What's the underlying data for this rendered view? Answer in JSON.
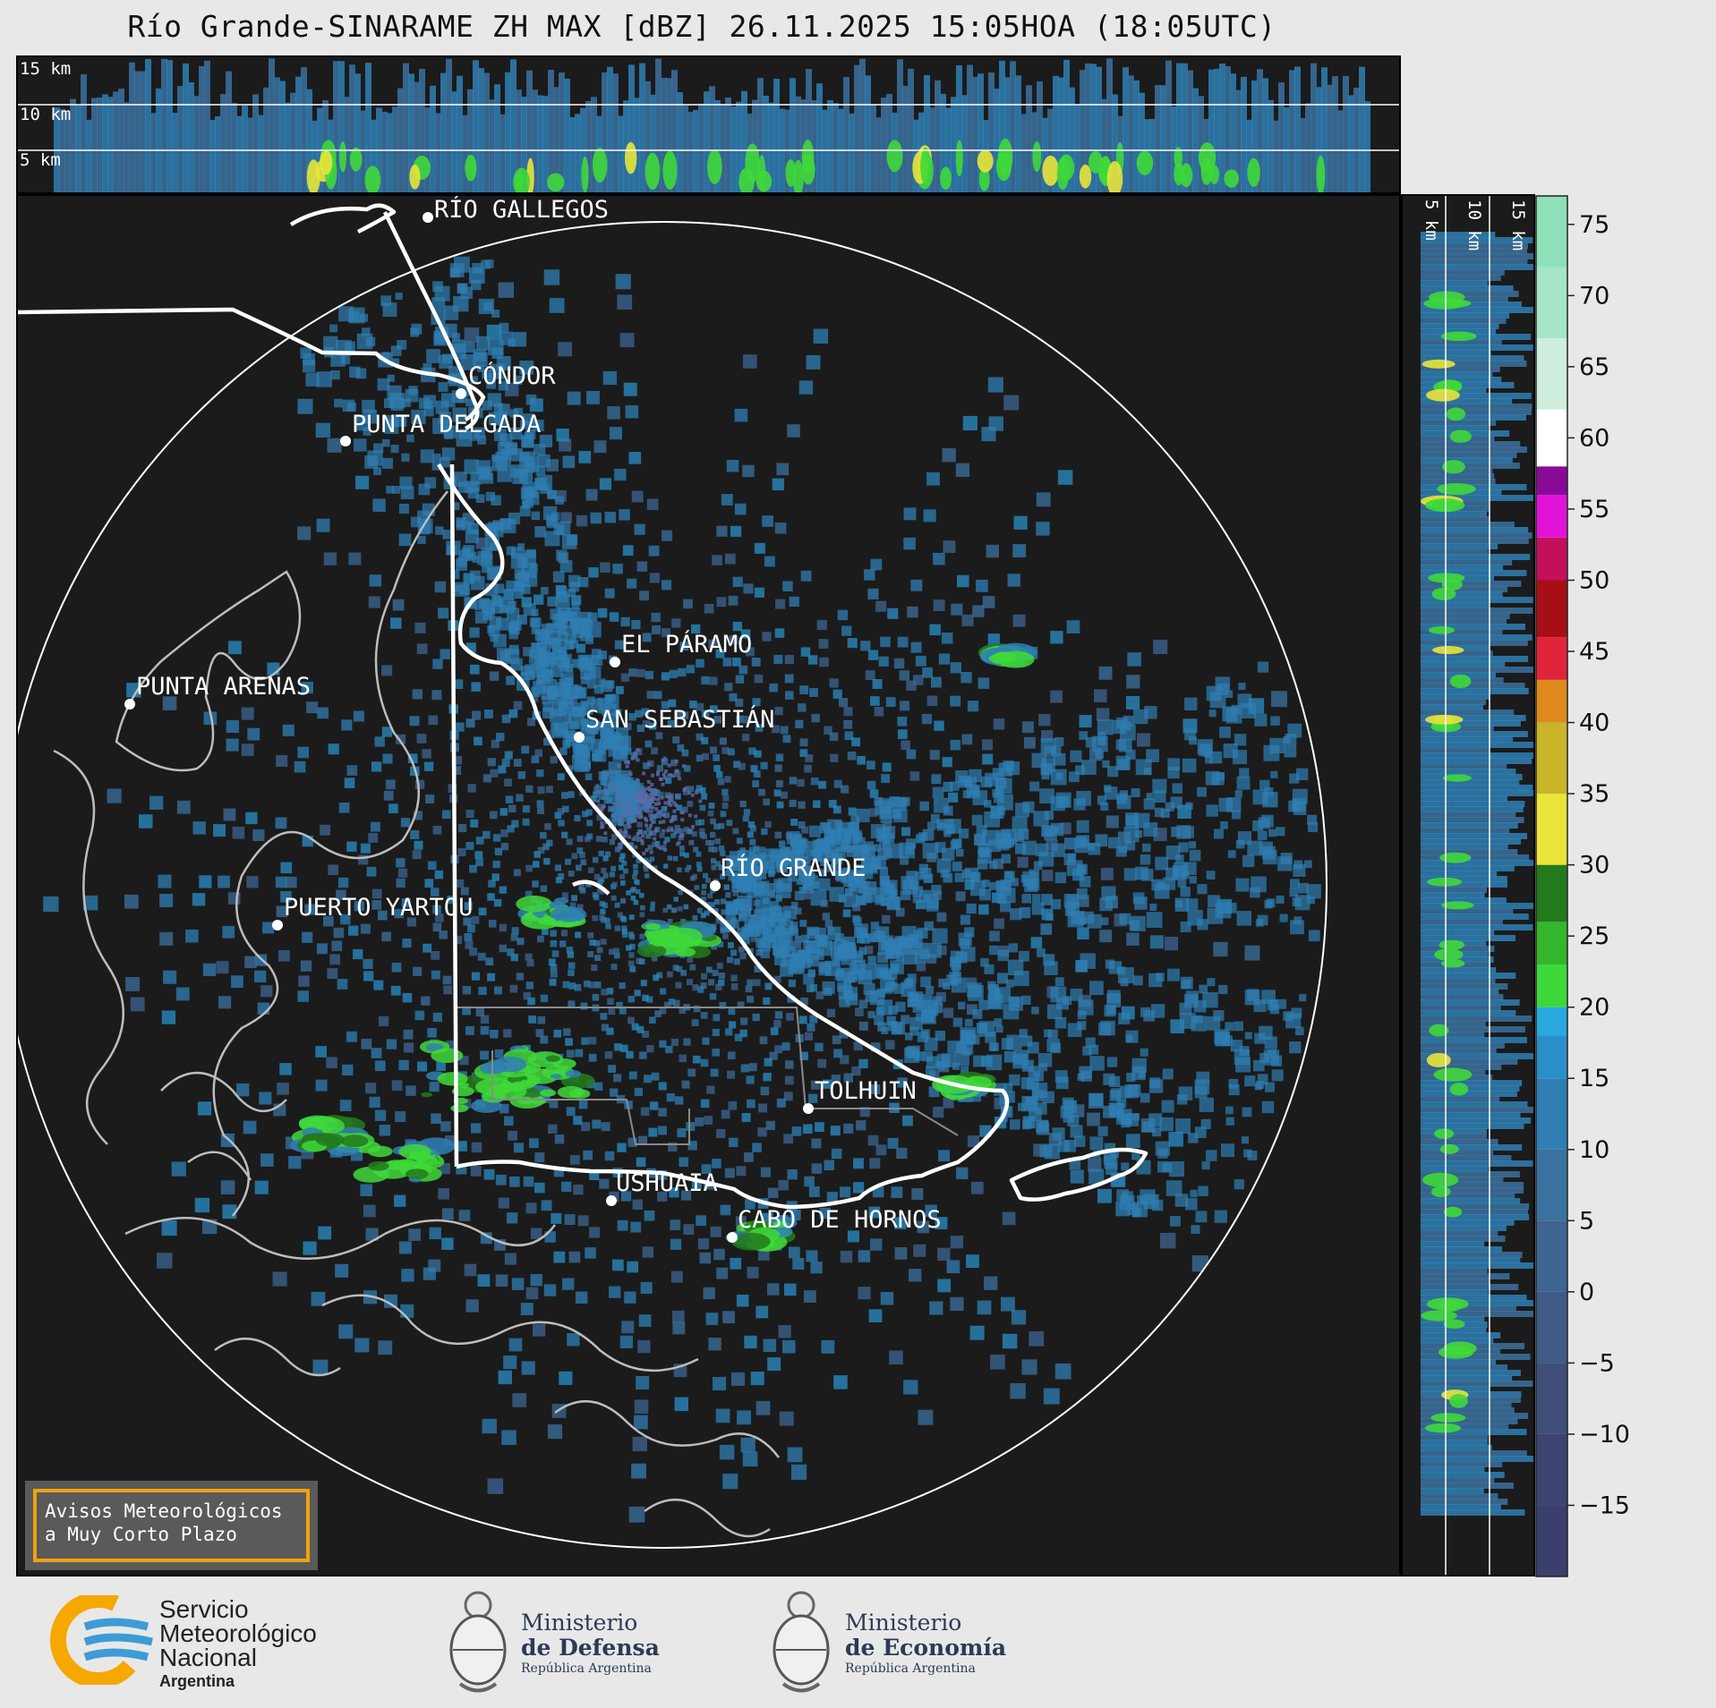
{
  "header": {
    "title": "Río Grande-SINARAME ZH MAX [dBZ] 26.11.2025 15:05HOA (18:05UTC)"
  },
  "top_panel": {
    "altitude_labels": [
      "15 km",
      "10 km",
      "5 km"
    ]
  },
  "side_panel": {
    "altitude_labels": [
      "5 km",
      "10 km",
      "15 km"
    ]
  },
  "map": {
    "cities": [
      "RÍO GALLEGOS",
      "CÓNDOR",
      "PUNTA DELGADA",
      "EL PÁRAMO",
      "PUNTA ARENAS",
      "SAN SEBASTIÁN",
      "RÍO GRANDE",
      "PUERTO YARTOU",
      "TOLHUIN",
      "USHUAIA",
      "CABO DE HORNOS"
    ]
  },
  "colorbar": {
    "unit": "dBZ",
    "ticks": [
      "75",
      "70",
      "65",
      "60",
      "55",
      "50",
      "45",
      "40",
      "35",
      "30",
      "25",
      "20",
      "15",
      "10",
      "5",
      "0",
      "−5",
      "−10",
      "−15"
    ],
    "bands": [
      {
        "from": -20,
        "to": -15,
        "color": "#3a3f6c"
      },
      {
        "from": -15,
        "to": -10,
        "color": "#3c456f"
      },
      {
        "from": -10,
        "to": -5,
        "color": "#3f4e7a"
      },
      {
        "from": -5,
        "to": 0,
        "color": "#3f5a86"
      },
      {
        "from": 0,
        "to": 5,
        "color": "#3e6592"
      },
      {
        "from": 5,
        "to": 10,
        "color": "#3b719f"
      },
      {
        "from": 10,
        "to": 15,
        "color": "#2f7fb4"
      },
      {
        "from": 15,
        "to": 18,
        "color": "#2a8fc8"
      },
      {
        "from": 18,
        "to": 20,
        "color": "#29a8e0"
      },
      {
        "from": 20,
        "to": 23,
        "color": "#3fd83a"
      },
      {
        "from": 23,
        "to": 26,
        "color": "#33b52c"
      },
      {
        "from": 26,
        "to": 30,
        "color": "#237a1c"
      },
      {
        "from": 30,
        "to": 35,
        "color": "#e8e43a"
      },
      {
        "from": 35,
        "to": 40,
        "color": "#c9b52a"
      },
      {
        "from": 40,
        "to": 43,
        "color": "#e08a1e"
      },
      {
        "from": 43,
        "to": 46,
        "color": "#e0243a"
      },
      {
        "from": 46,
        "to": 50,
        "color": "#a50f15"
      },
      {
        "from": 50,
        "to": 53,
        "color": "#c4105a"
      },
      {
        "from": 53,
        "to": 56,
        "color": "#e012d8"
      },
      {
        "from": 56,
        "to": 58,
        "color": "#8a0a98"
      },
      {
        "from": 58,
        "to": 62,
        "color": "#ffffff"
      },
      {
        "from": 62,
        "to": 67,
        "color": "#cdeedd"
      },
      {
        "from": 67,
        "to": 72,
        "color": "#a6e4c6"
      },
      {
        "from": 72,
        "to": 77,
        "color": "#8ee0b8"
      }
    ],
    "min": -20,
    "max": 77
  },
  "warning_box": {
    "line1": "Avisos Meteorológicos",
    "line2": "a Muy Corto Plazo",
    "border_color": "#f2a10c"
  },
  "footer": {
    "smn": {
      "line1": "Servicio",
      "line2": "Meteorológico",
      "line3": "Nacional",
      "line4": "Argentina"
    },
    "defensa": {
      "line1": "Ministerio",
      "line2": "de Defensa",
      "line3": "República Argentina"
    },
    "economia": {
      "line1": "Ministerio",
      "line2": "de Economía",
      "line3": "República Argentina"
    }
  },
  "colors": {
    "background": "#1b1b1b",
    "echo_blue": "#2f7fb4",
    "echo_green": "#3fd83a",
    "echo_yellow": "#e8e43a",
    "border_white": "#ffffff",
    "coast_gray": "#bdbdbd"
  }
}
